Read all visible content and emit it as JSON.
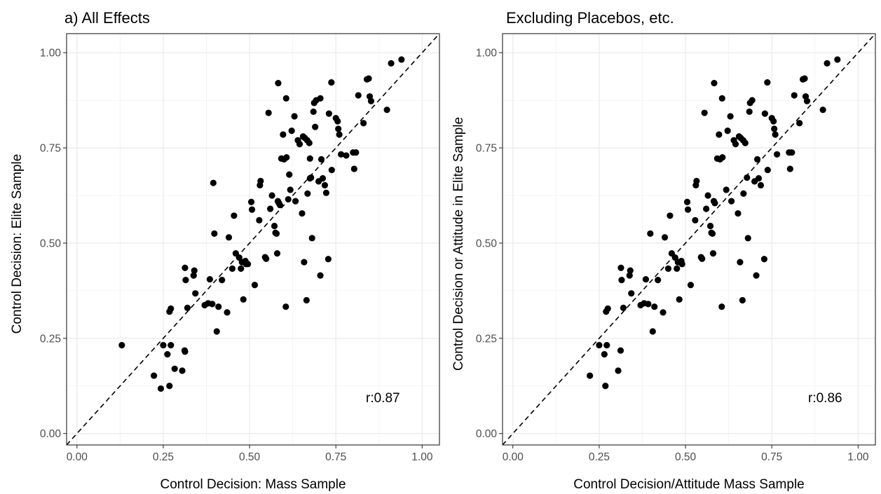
{
  "chart_data": [
    {
      "type": "scatter",
      "title": "a) All Effects",
      "xlabel": "Control Decision: Mass Sample",
      "ylabel": "Control Decision: Elite Sample",
      "xlim": [
        -0.03,
        1.05
      ],
      "ylim": [
        -0.03,
        1.05
      ],
      "xticks": [
        "0.00",
        "0.25",
        "0.50",
        "0.75",
        "1.00"
      ],
      "yticks": [
        "0.00",
        "0.25",
        "0.50",
        "0.75",
        "1.00"
      ],
      "grid": true,
      "reference_line": "y = x (dashed)",
      "annotation": "r:0.87",
      "points": [
        [
          0.13,
          0.232
        ],
        [
          0.223,
          0.152
        ],
        [
          0.243,
          0.118
        ],
        [
          0.25,
          0.232
        ],
        [
          0.262,
          0.208
        ],
        [
          0.268,
          0.125
        ],
        [
          0.272,
          0.232
        ],
        [
          0.283,
          0.17
        ],
        [
          0.305,
          0.165
        ],
        [
          0.312,
          0.218
        ],
        [
          0.313,
          0.215
        ],
        [
          0.313,
          0.435
        ],
        [
          0.315,
          0.403
        ],
        [
          0.32,
          0.33
        ],
        [
          0.268,
          0.32
        ],
        [
          0.272,
          0.328
        ],
        [
          0.338,
          0.415
        ],
        [
          0.34,
          0.428
        ],
        [
          0.343,
          0.368
        ],
        [
          0.37,
          0.337
        ],
        [
          0.38,
          0.342
        ],
        [
          0.385,
          0.405
        ],
        [
          0.392,
          0.34
        ],
        [
          0.395,
          0.658
        ],
        [
          0.398,
          0.525
        ],
        [
          0.405,
          0.268
        ],
        [
          0.41,
          0.333
        ],
        [
          0.42,
          0.403
        ],
        [
          0.435,
          0.318
        ],
        [
          0.44,
          0.515
        ],
        [
          0.45,
          0.433
        ],
        [
          0.455,
          0.572
        ],
        [
          0.46,
          0.473
        ],
        [
          0.47,
          0.462
        ],
        [
          0.475,
          0.433
        ],
        [
          0.478,
          0.45
        ],
        [
          0.482,
          0.352
        ],
        [
          0.488,
          0.453
        ],
        [
          0.49,
          0.445
        ],
        [
          0.505,
          0.608
        ],
        [
          0.507,
          0.588
        ],
        [
          0.515,
          0.39
        ],
        [
          0.528,
          0.56
        ],
        [
          0.53,
          0.652
        ],
        [
          0.532,
          0.663
        ],
        [
          0.545,
          0.463
        ],
        [
          0.548,
          0.459
        ],
        [
          0.555,
          0.842
        ],
        [
          0.56,
          0.59
        ],
        [
          0.565,
          0.625
        ],
        [
          0.572,
          0.545
        ],
        [
          0.575,
          0.527
        ],
        [
          0.578,
          0.525
        ],
        [
          0.58,
          0.473
        ],
        [
          0.582,
          0.61
        ],
        [
          0.585,
          0.605
        ],
        [
          0.588,
          0.6
        ],
        [
          0.583,
          0.92
        ],
        [
          0.592,
          0.722
        ],
        [
          0.597,
          0.785
        ],
        [
          0.6,
          0.72
        ],
        [
          0.605,
          0.333
        ],
        [
          0.606,
          0.88
        ],
        [
          0.607,
          0.725
        ],
        [
          0.612,
          0.615
        ],
        [
          0.618,
          0.64
        ],
        [
          0.622,
          0.795
        ],
        [
          0.63,
          0.833
        ],
        [
          0.633,
          0.61
        ],
        [
          0.64,
          0.77
        ],
        [
          0.645,
          0.76
        ],
        [
          0.652,
          0.578
        ],
        [
          0.655,
          0.78
        ],
        [
          0.658,
          0.45
        ],
        [
          0.66,
          0.776
        ],
        [
          0.665,
          0.35
        ],
        [
          0.667,
          0.77
        ],
        [
          0.668,
          0.63
        ],
        [
          0.673,
          0.763
        ],
        [
          0.675,
          0.722
        ],
        [
          0.678,
          0.672
        ],
        [
          0.681,
          0.513
        ],
        [
          0.685,
          0.845
        ],
        [
          0.687,
          0.868
        ],
        [
          0.69,
          0.805
        ],
        [
          0.693,
          0.875
        ],
        [
          0.7,
          0.662
        ],
        [
          0.705,
          0.415
        ],
        [
          0.708,
          0.72
        ],
        [
          0.712,
          0.67
        ],
        [
          0.718,
          0.652
        ],
        [
          0.722,
          0.632
        ],
        [
          0.728,
          0.458
        ],
        [
          0.73,
          0.84
        ],
        [
          0.737,
          0.922
        ],
        [
          0.738,
          0.692
        ],
        [
          0.75,
          0.828
        ],
        [
          0.755,
          0.82
        ],
        [
          0.757,
          0.8
        ],
        [
          0.76,
          0.785
        ],
        [
          0.765,
          0.733
        ],
        [
          0.8,
          0.738
        ],
        [
          0.803,
          0.695
        ],
        [
          0.808,
          0.738
        ],
        [
          0.815,
          0.888
        ],
        [
          0.83,
          0.815
        ],
        [
          0.84,
          0.93
        ],
        [
          0.845,
          0.932
        ],
        [
          0.848,
          0.885
        ],
        [
          0.852,
          0.873
        ],
        [
          0.898,
          0.85
        ],
        [
          0.91,
          0.972
        ],
        [
          0.94,
          0.982
        ],
        [
          0.615,
          0.68
        ],
        [
          0.705,
          0.88
        ],
        [
          0.78,
          0.73
        ],
        [
          0.675,
          0.67
        ],
        [
          0.495,
          0.445
        ]
      ]
    },
    {
      "type": "scatter",
      "title": "Excluding Placebos, etc.",
      "xlabel": "Control Decision/Attitude Mass Sample",
      "ylabel": "Control Decision or Attitude in Elite Sample",
      "xlim": [
        -0.03,
        1.05
      ],
      "ylim": [
        -0.03,
        1.05
      ],
      "xticks": [
        "0.00",
        "0.25",
        "0.50",
        "0.75",
        "1.00"
      ],
      "yticks": [
        "0.00",
        "0.25",
        "0.50",
        "0.75",
        "1.00"
      ],
      "grid": true,
      "reference_line": "y = x (dashed)",
      "annotation": "r:0.86",
      "points": [
        [
          0.223,
          0.152
        ],
        [
          0.25,
          0.232
        ],
        [
          0.265,
          0.208
        ],
        [
          0.268,
          0.125
        ],
        [
          0.272,
          0.232
        ],
        [
          0.27,
          0.32
        ],
        [
          0.275,
          0.328
        ],
        [
          0.305,
          0.165
        ],
        [
          0.312,
          0.218
        ],
        [
          0.313,
          0.435
        ],
        [
          0.315,
          0.403
        ],
        [
          0.32,
          0.33
        ],
        [
          0.338,
          0.415
        ],
        [
          0.34,
          0.428
        ],
        [
          0.343,
          0.368
        ],
        [
          0.37,
          0.337
        ],
        [
          0.38,
          0.342
        ],
        [
          0.385,
          0.405
        ],
        [
          0.392,
          0.34
        ],
        [
          0.398,
          0.525
        ],
        [
          0.405,
          0.268
        ],
        [
          0.41,
          0.333
        ],
        [
          0.42,
          0.403
        ],
        [
          0.435,
          0.318
        ],
        [
          0.44,
          0.515
        ],
        [
          0.45,
          0.433
        ],
        [
          0.455,
          0.572
        ],
        [
          0.46,
          0.473
        ],
        [
          0.47,
          0.462
        ],
        [
          0.475,
          0.433
        ],
        [
          0.478,
          0.45
        ],
        [
          0.482,
          0.352
        ],
        [
          0.488,
          0.453
        ],
        [
          0.49,
          0.445
        ],
        [
          0.505,
          0.608
        ],
        [
          0.507,
          0.588
        ],
        [
          0.515,
          0.39
        ],
        [
          0.528,
          0.56
        ],
        [
          0.53,
          0.652
        ],
        [
          0.532,
          0.663
        ],
        [
          0.545,
          0.463
        ],
        [
          0.548,
          0.459
        ],
        [
          0.555,
          0.842
        ],
        [
          0.56,
          0.59
        ],
        [
          0.565,
          0.625
        ],
        [
          0.572,
          0.545
        ],
        [
          0.575,
          0.527
        ],
        [
          0.578,
          0.525
        ],
        [
          0.58,
          0.473
        ],
        [
          0.582,
          0.61
        ],
        [
          0.585,
          0.605
        ],
        [
          0.583,
          0.92
        ],
        [
          0.592,
          0.722
        ],
        [
          0.597,
          0.785
        ],
        [
          0.6,
          0.72
        ],
        [
          0.605,
          0.333
        ],
        [
          0.606,
          0.88
        ],
        [
          0.607,
          0.725
        ],
        [
          0.618,
          0.64
        ],
        [
          0.622,
          0.795
        ],
        [
          0.63,
          0.833
        ],
        [
          0.633,
          0.61
        ],
        [
          0.64,
          0.77
        ],
        [
          0.645,
          0.76
        ],
        [
          0.652,
          0.578
        ],
        [
          0.655,
          0.78
        ],
        [
          0.658,
          0.45
        ],
        [
          0.66,
          0.776
        ],
        [
          0.665,
          0.35
        ],
        [
          0.667,
          0.77
        ],
        [
          0.668,
          0.63
        ],
        [
          0.673,
          0.763
        ],
        [
          0.678,
          0.672
        ],
        [
          0.681,
          0.513
        ],
        [
          0.685,
          0.845
        ],
        [
          0.687,
          0.868
        ],
        [
          0.693,
          0.875
        ],
        [
          0.7,
          0.662
        ],
        [
          0.705,
          0.415
        ],
        [
          0.708,
          0.72
        ],
        [
          0.712,
          0.67
        ],
        [
          0.718,
          0.652
        ],
        [
          0.728,
          0.458
        ],
        [
          0.73,
          0.84
        ],
        [
          0.737,
          0.922
        ],
        [
          0.738,
          0.692
        ],
        [
          0.75,
          0.828
        ],
        [
          0.755,
          0.82
        ],
        [
          0.757,
          0.8
        ],
        [
          0.76,
          0.785
        ],
        [
          0.765,
          0.733
        ],
        [
          0.8,
          0.738
        ],
        [
          0.803,
          0.695
        ],
        [
          0.808,
          0.738
        ],
        [
          0.815,
          0.888
        ],
        [
          0.83,
          0.815
        ],
        [
          0.84,
          0.93
        ],
        [
          0.845,
          0.932
        ],
        [
          0.848,
          0.885
        ],
        [
          0.852,
          0.873
        ],
        [
          0.898,
          0.85
        ],
        [
          0.91,
          0.972
        ],
        [
          0.94,
          0.982
        ]
      ]
    }
  ]
}
